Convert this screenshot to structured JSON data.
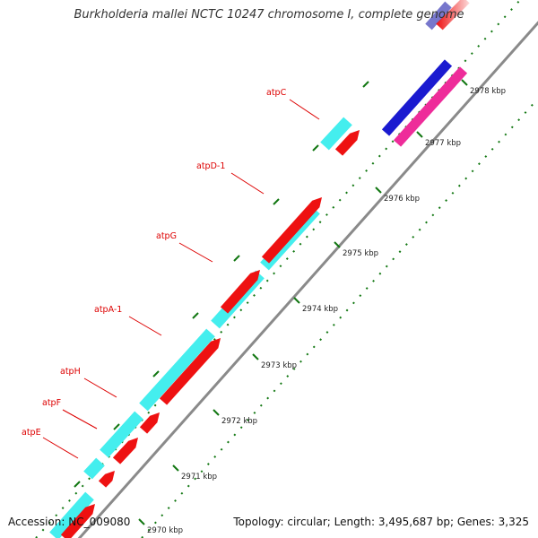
{
  "title": "Burkholderia mallei NCTC 10247 chromosome I, complete genome",
  "footer": {
    "accession": "Accession: NC_009080",
    "summary": "Topology: circular; Length: 3,495,687 bp; Genes: 3,325"
  },
  "colors": {
    "backbone": "#8a8a8a",
    "tick": "#117711",
    "forward_gene": "#44eeee",
    "reverse_gene": "#ee1111",
    "label": "#dd0000",
    "blue_gene": "#1a1ad0",
    "magenta_gene": "#ee2c9a"
  },
  "scale_ticks": [
    {
      "label": "2970 kbp"
    },
    {
      "label": "2971 kbp"
    },
    {
      "label": "2972 kbp"
    },
    {
      "label": "2973 kbp"
    },
    {
      "label": "2974 kbp"
    },
    {
      "label": "2975 kbp"
    },
    {
      "label": "2976 kbp"
    },
    {
      "label": "2977 kbp"
    },
    {
      "label": "2978 kbp"
    }
  ],
  "gene_labels": [
    {
      "name": "atpC"
    },
    {
      "name": "atpD-1"
    },
    {
      "name": "atpG"
    },
    {
      "name": "atpA-1"
    },
    {
      "name": "atpH"
    },
    {
      "name": "atpF"
    },
    {
      "name": "atpE"
    }
  ]
}
